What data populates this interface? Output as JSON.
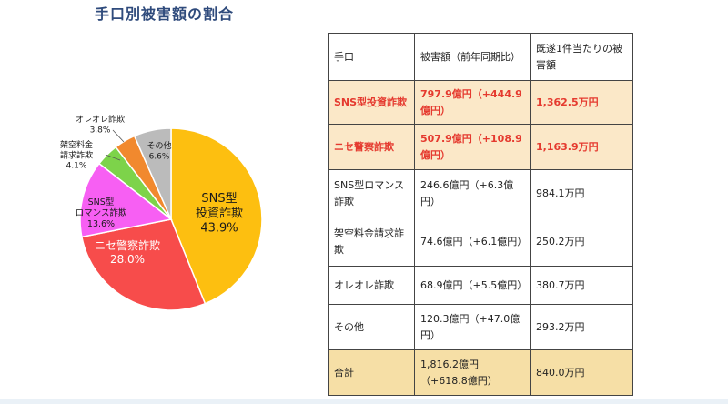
{
  "title": "手口別被害額の割合",
  "chart_data": {
    "type": "pie",
    "slices": [
      {
        "name": "SNS型投資詐欺",
        "label": [
          "SNS型",
          "投資詐欺"
        ],
        "pct_label": "43.9%",
        "value": 43.9,
        "color": "#fdbf10"
      },
      {
        "name": "ニセ警察詐欺",
        "label": [
          "ニセ警察詐欺"
        ],
        "pct_label": "28.0%",
        "value": 28.0,
        "color": "#f74c4b"
      },
      {
        "name": "SNS型ロマンス詐欺",
        "label": [
          "SNS型",
          "ロマンス詐欺"
        ],
        "pct_label": "13.6%",
        "value": 13.6,
        "color": "#f75ff3"
      },
      {
        "name": "架空料金請求詐欺",
        "label": [
          "架空料金",
          "請求詐欺"
        ],
        "pct_label": "4.1%",
        "value": 4.1,
        "color": "#7dd34a"
      },
      {
        "name": "オレオレ詐欺",
        "label": [
          "オレオレ詐欺"
        ],
        "pct_label": "3.8%",
        "value": 3.8,
        "color": "#f1892e"
      },
      {
        "name": "その他",
        "label": [
          "その他"
        ],
        "pct_label": "6.6%",
        "value": 6.6,
        "color": "#bbbbbb"
      }
    ]
  },
  "table": {
    "headers": [
      "手口",
      "被害額（前年同期比）",
      "既遂1件当たりの被害額"
    ],
    "rows": [
      {
        "cells": [
          "SNS型投資詐欺",
          "797.9億円（+444.9億円）",
          "1,362.5万円"
        ],
        "style": "hl"
      },
      {
        "cells": [
          "ニセ警察詐欺",
          "507.9億円（+108.9億円）",
          "1,163.9万円"
        ],
        "style": "hl"
      },
      {
        "cells": [
          "SNS型ロマンス詐欺",
          "246.6億円（+6.3億円）",
          "984.1万円"
        ],
        "style": ""
      },
      {
        "cells": [
          "架空料金請求詐欺",
          "74.6億円（+6.1億円）",
          "250.2万円"
        ],
        "style": ""
      },
      {
        "cells": [
          "オレオレ詐欺",
          "68.9億円（+5.5億円）",
          "380.7万円"
        ],
        "style": ""
      },
      {
        "cells": [
          "その他",
          "120.3億円（+47.0億円）",
          "293.2万円"
        ],
        "style": ""
      },
      {
        "cells": [
          "合計",
          "1,816.2億円（+618.8億円）",
          "840.0万円"
        ],
        "style": "total"
      }
    ]
  }
}
